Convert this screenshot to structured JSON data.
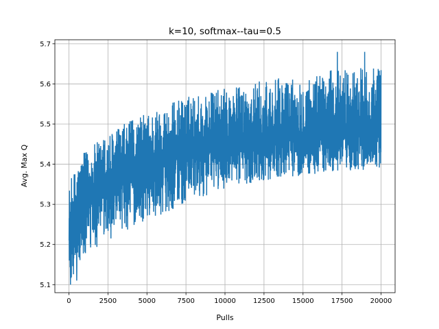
{
  "chart_data": {
    "type": "line",
    "title": "k=10, softmax--tau=0.5",
    "xlabel": "Pulls",
    "ylabel": "Avg. Max Q",
    "xlim": [
      -900,
      20900
    ],
    "ylim": [
      5.08,
      5.71
    ],
    "x_ticks": [
      0,
      2500,
      5000,
      7500,
      10000,
      12500,
      15000,
      17500,
      20000
    ],
    "y_ticks": [
      5.1,
      5.2,
      5.3,
      5.4,
      5.5,
      5.6,
      5.7
    ],
    "grid": true,
    "legend": "none",
    "series": [
      {
        "name": "",
        "color": "#1f77b4",
        "x_range": [
          0,
          20000
        ],
        "mean_curve": {
          "x": [
            0,
            200,
            500,
            1000,
            2000,
            3000,
            4000,
            5000,
            6000,
            7500,
            10000,
            12500,
            15000,
            17500,
            20000
          ],
          "y": [
            5.21,
            5.25,
            5.28,
            5.31,
            5.34,
            5.36,
            5.38,
            5.4,
            5.41,
            5.43,
            5.45,
            5.465,
            5.475,
            5.48,
            5.49
          ]
        },
        "upper_envelope": {
          "x": [
            0,
            500,
            1000,
            2500,
            5000,
            7500,
            10000,
            12500,
            15000,
            17500,
            20000
          ],
          "y": [
            5.35,
            5.4,
            5.43,
            5.48,
            5.53,
            5.57,
            5.59,
            5.61,
            5.62,
            5.64,
            5.65
          ]
        },
        "lower_envelope": {
          "x": [
            0,
            500,
            1000,
            2500,
            5000,
            7500,
            10000,
            12500,
            15000,
            17500,
            20000
          ],
          "y": [
            5.1,
            5.13,
            5.16,
            5.21,
            5.26,
            5.3,
            5.34,
            5.36,
            5.37,
            5.38,
            5.39
          ]
        },
        "max_spike": {
          "x": [
            17200,
            18950
          ],
          "y": [
            5.68,
            5.68
          ]
        },
        "min_spike": {
          "x": [
            100,
            500
          ],
          "y": [
            5.1,
            5.11
          ]
        }
      }
    ]
  }
}
